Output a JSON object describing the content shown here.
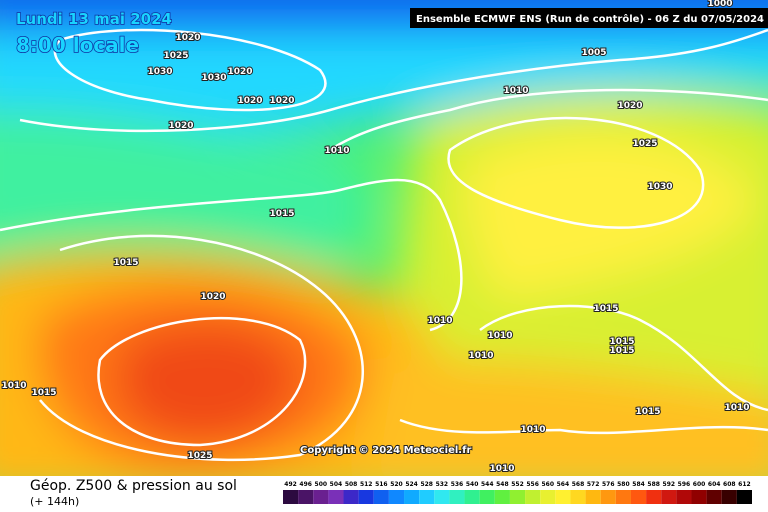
{
  "header": {
    "date": "Lundi 13 mai 2024",
    "time": "8:00 locale",
    "model": "Ensemble ECMWF ENS  (Run de contrôle)  - 06 Z du 07/05/2024"
  },
  "copyright": "Copyright © 2024 Meteociel.fr",
  "footer": {
    "title": "Géop. Z500 & pression au sol",
    "lead": "(+ 144h)"
  },
  "isobar_labels": [
    "1000",
    "1020",
    "1025",
    "1030",
    "1030",
    "1020",
    "1020",
    "1020",
    "1020",
    "1005",
    "1010",
    "1020",
    "1010",
    "1025",
    "1030",
    "1015",
    "1015",
    "1020",
    "1015",
    "1010",
    "1010",
    "1010",
    "1015",
    "1015",
    "1010",
    "1015",
    "1010",
    "1015",
    "1010",
    "1025",
    "1010"
  ],
  "legend": {
    "levels": [
      492,
      496,
      500,
      504,
      508,
      512,
      516,
      520,
      524,
      528,
      532,
      536,
      540,
      544,
      548,
      552,
      556,
      560,
      564,
      568,
      572,
      576,
      580,
      584,
      588,
      592,
      596,
      600,
      604,
      608,
      612
    ],
    "colors": [
      "#2c0a40",
      "#4a1466",
      "#6a2090",
      "#7a30b8",
      "#3c28c8",
      "#1838e0",
      "#1060f0",
      "#1088ff",
      "#10aaff",
      "#20ccff",
      "#30e8f0",
      "#30f0c0",
      "#30f090",
      "#40f060",
      "#60f040",
      "#90f030",
      "#c0f030",
      "#e8f030",
      "#fff030",
      "#ffd820",
      "#ffb810",
      "#ff9810",
      "#ff7810",
      "#ff5810",
      "#f03010",
      "#d01810",
      "#b00808",
      "#900000",
      "#600000",
      "#380000",
      "#000000"
    ]
  }
}
